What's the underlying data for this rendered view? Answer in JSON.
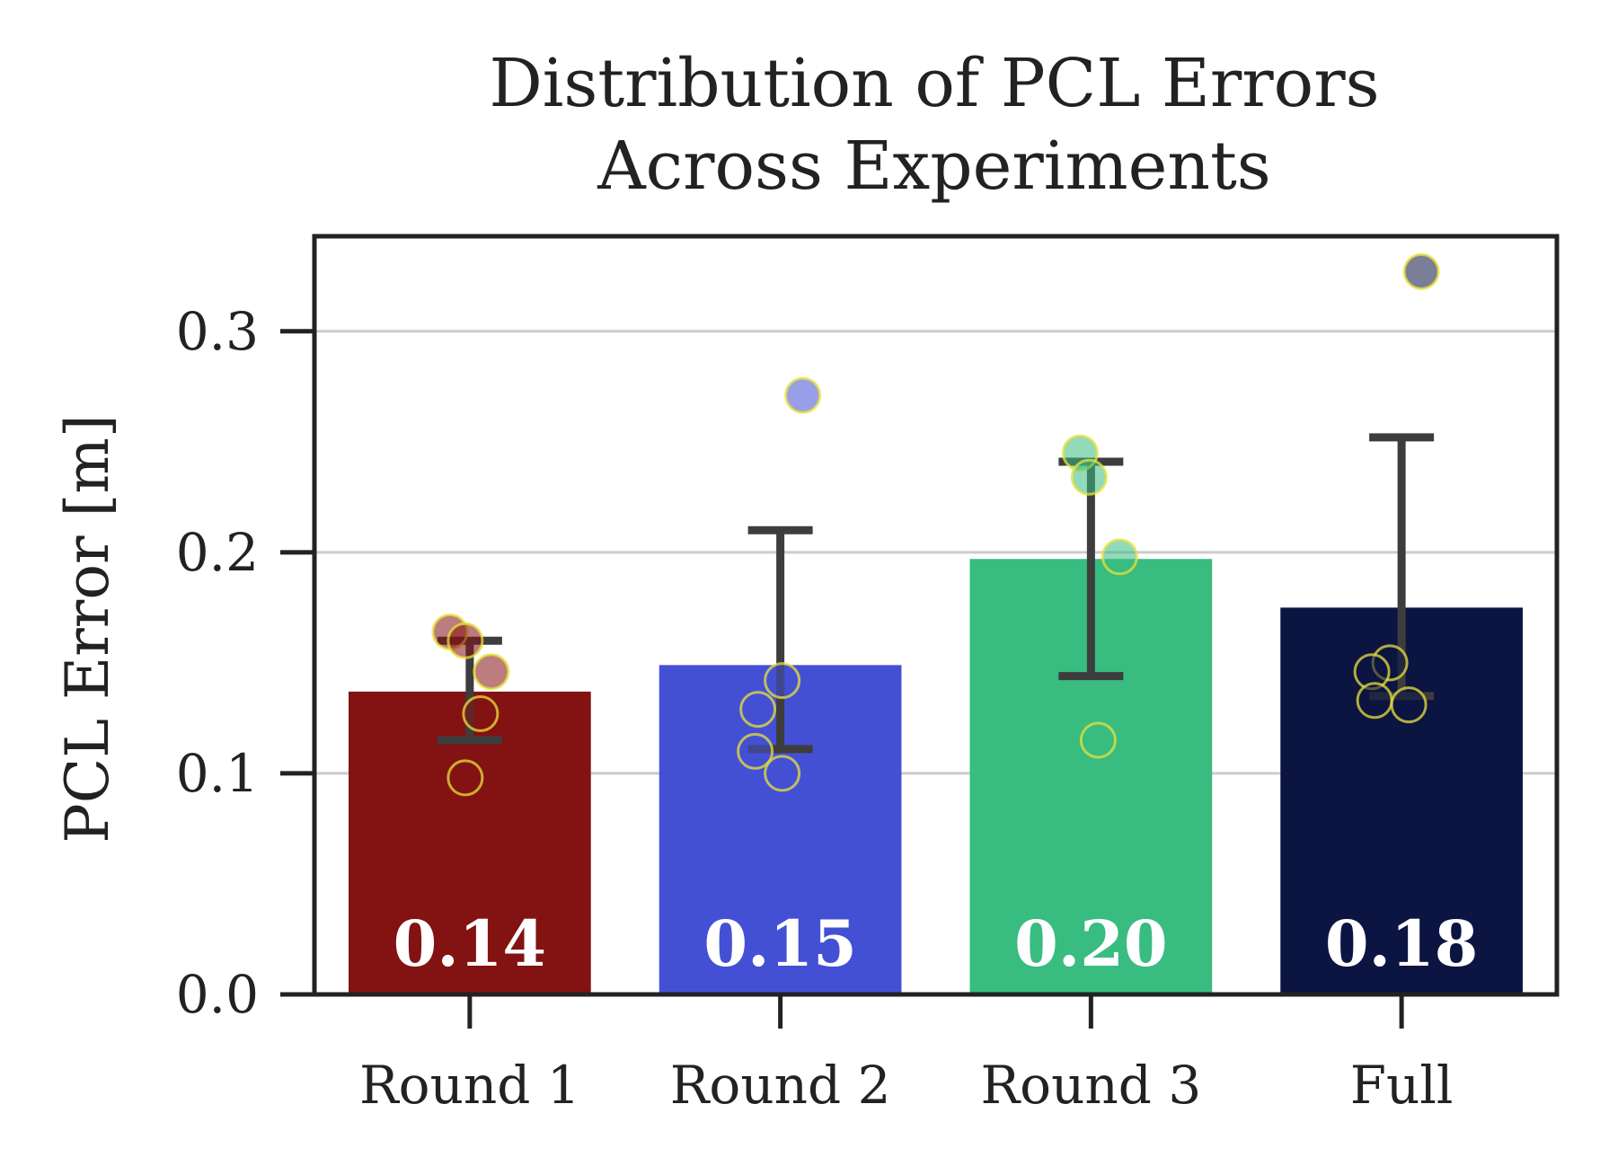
{
  "chart_data": {
    "type": "bar",
    "title": [
      "Distribution of PCL Errors",
      "Across Experiments"
    ],
    "xlabel": "",
    "ylabel": "PCL Error [m]",
    "ylim": [
      0,
      0.343
    ],
    "yticks": [
      0.0,
      0.1,
      0.2,
      0.3
    ],
    "ytick_labels": [
      "0.0",
      "0.1",
      "0.2",
      "0.3"
    ],
    "grid": "y",
    "categories": [
      "Round 1",
      "Round 2",
      "Round 3",
      "Full"
    ],
    "values": [
      0.137,
      0.149,
      0.197,
      0.175
    ],
    "value_labels": [
      "0.14",
      "0.15",
      "0.20",
      "0.18"
    ],
    "error_low": [
      0.115,
      0.111,
      0.144,
      0.135
    ],
    "error_high": [
      0.16,
      0.21,
      0.241,
      0.252
    ],
    "bar_colors": [
      "#831212",
      "#4450d4",
      "#38bc80",
      "#0c1442"
    ],
    "point_edge_color": "#e8e23a",
    "points": [
      [
        0.164,
        0.16,
        0.146,
        0.127,
        0.098
      ],
      [
        0.271,
        0.142,
        0.129,
        0.11,
        0.1
      ],
      [
        0.245,
        0.234,
        0.198,
        0.115
      ],
      [
        0.327,
        0.15,
        0.146,
        0.133,
        0.131
      ]
    ]
  }
}
